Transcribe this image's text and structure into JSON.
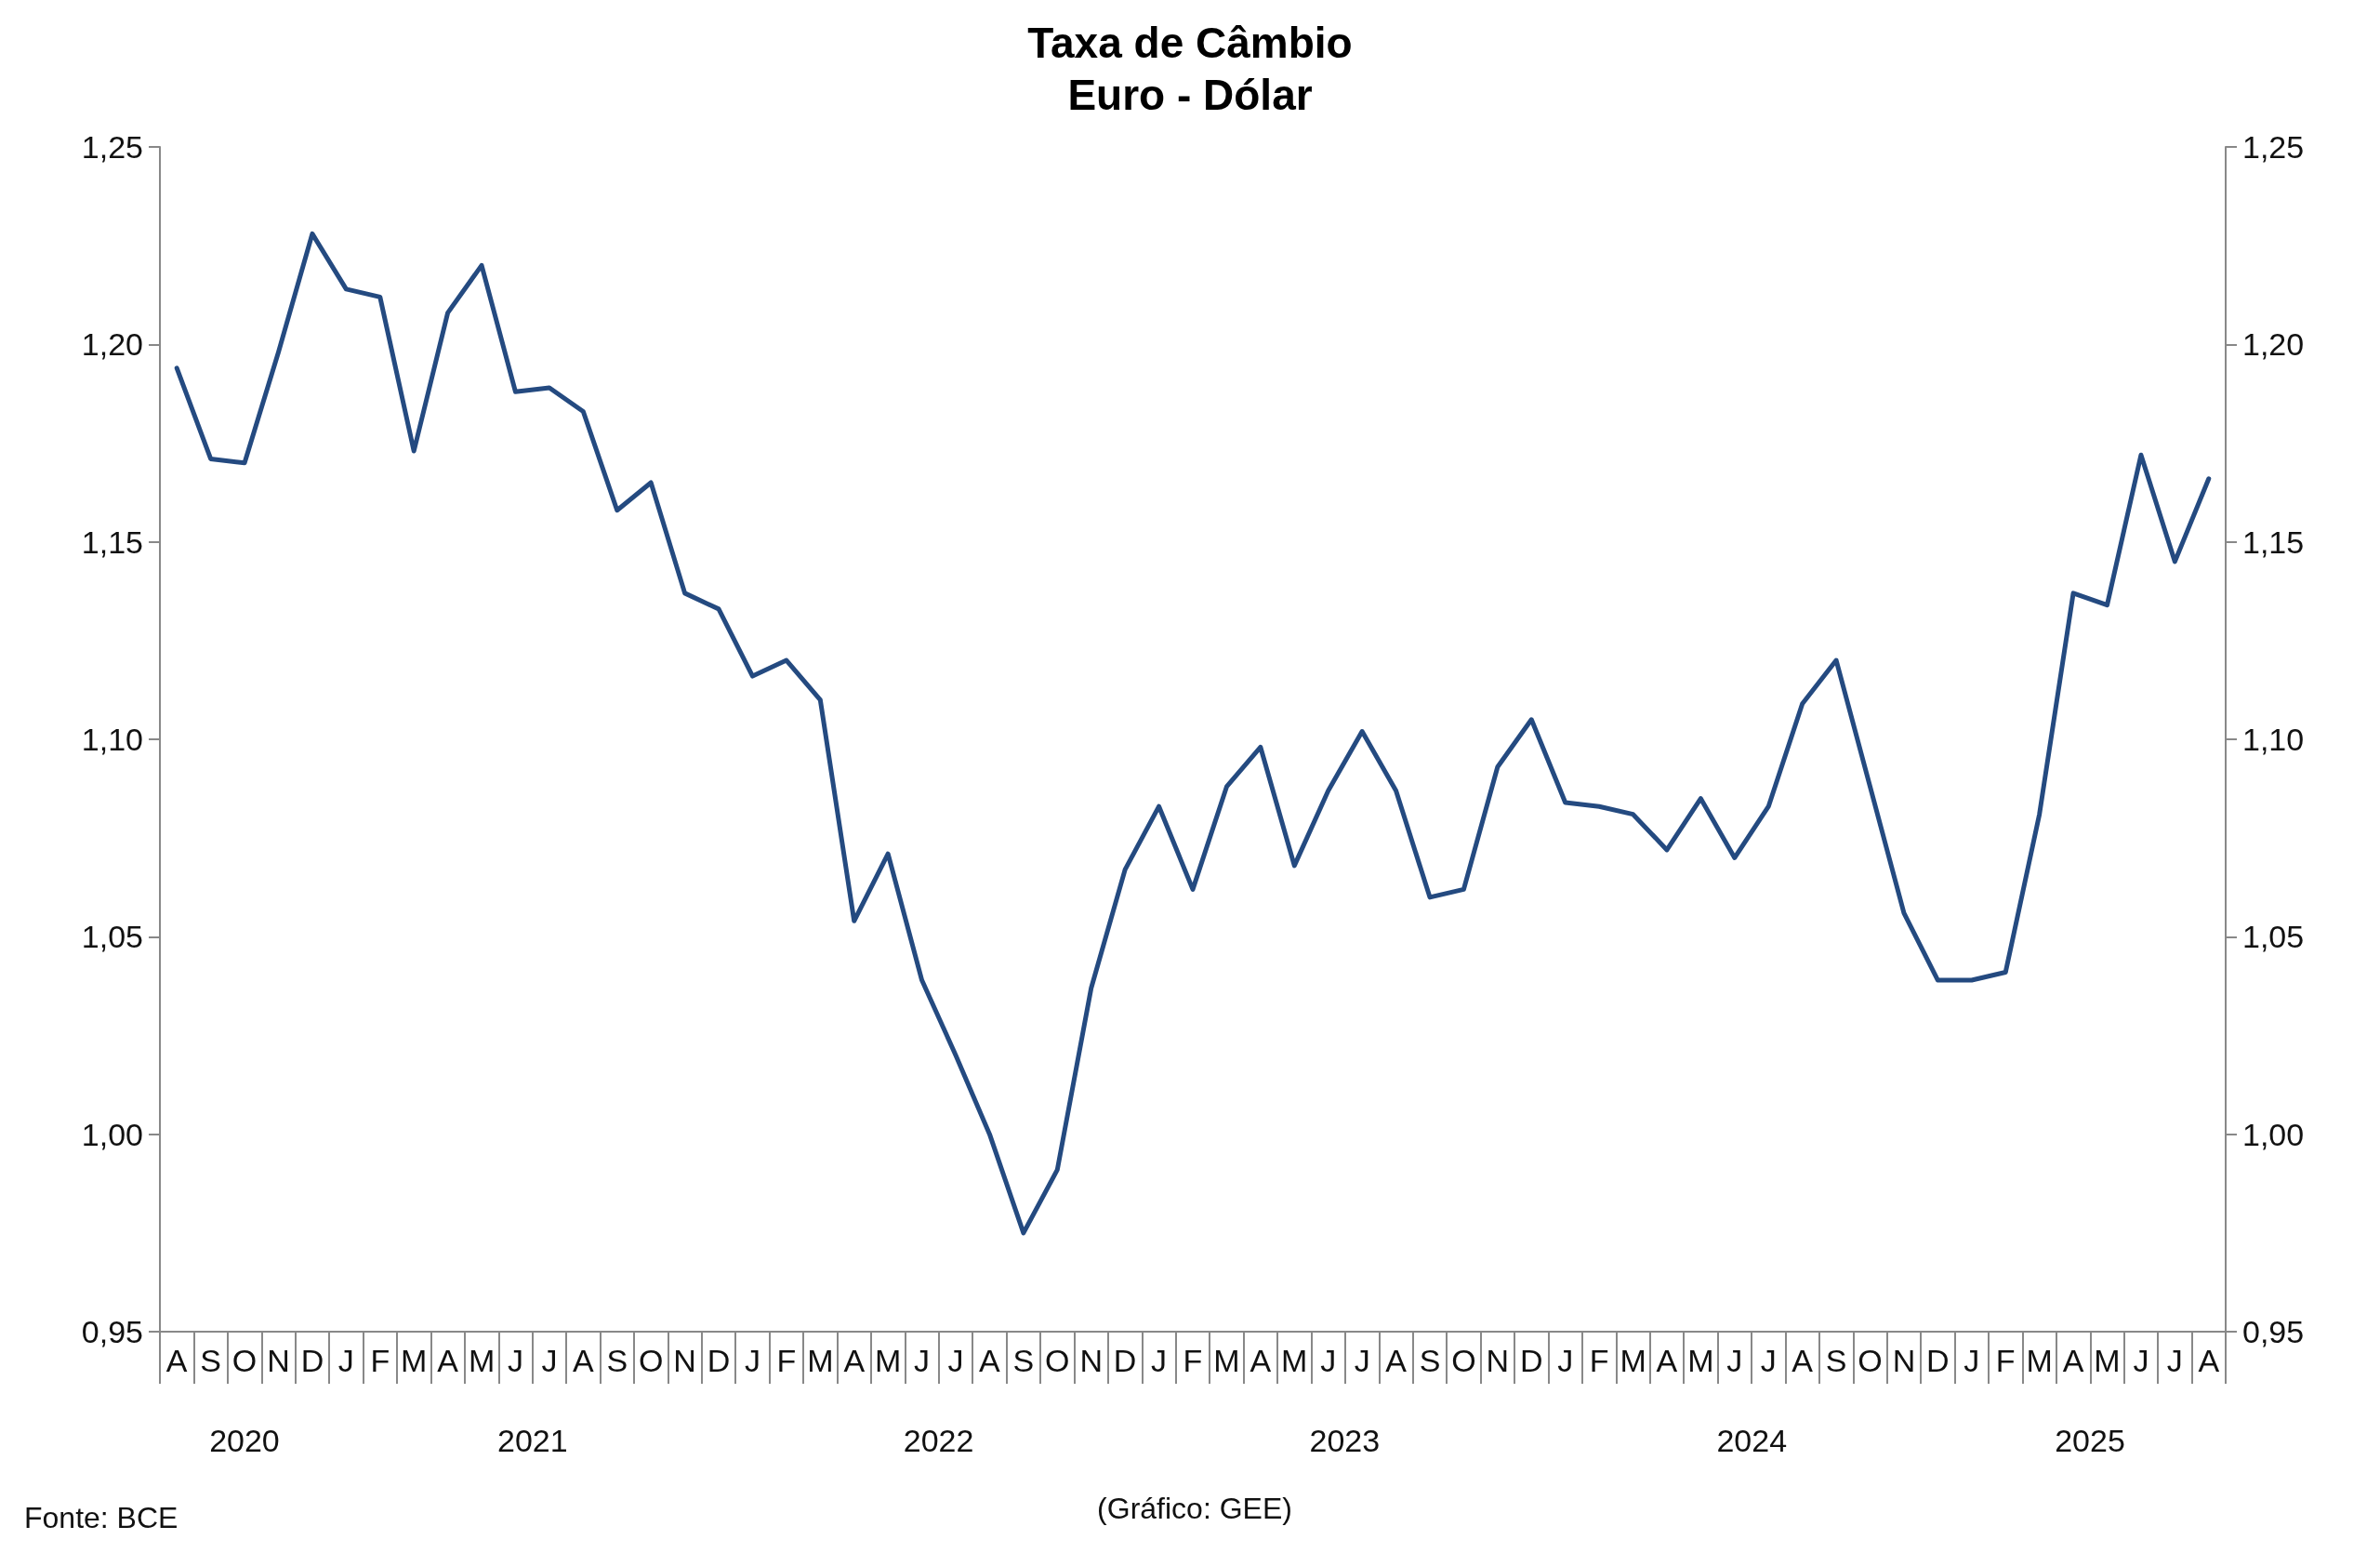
{
  "chart_data": {
    "type": "line",
    "title": "Taxa de Câmbio",
    "subtitle": "Euro - Dólar",
    "categories": [
      "A",
      "S",
      "O",
      "N",
      "D",
      "J",
      "F",
      "M",
      "A",
      "M",
      "J",
      "J",
      "A",
      "S",
      "O",
      "N",
      "D",
      "J",
      "F",
      "M",
      "A",
      "M",
      "J",
      "J",
      "A",
      "S",
      "O",
      "N",
      "D",
      "J",
      "F",
      "M",
      "A",
      "M",
      "J",
      "J",
      "A",
      "S",
      "O",
      "N",
      "D",
      "J",
      "F",
      "M",
      "A",
      "M",
      "J",
      "J",
      "A",
      "S",
      "O",
      "N",
      "D",
      "J",
      "F",
      "M",
      "A",
      "M",
      "J",
      "J",
      "A"
    ],
    "x2lim": [
      "2020-08-01",
      "2025-09-01"
    ],
    "x2ticks": [
      {
        "value": "2020-10-16",
        "label": "2020"
      },
      {
        "value": "2021-07-02",
        "label": "2021"
      },
      {
        "value": "2022-07-02",
        "label": "2022"
      },
      {
        "value": "2023-07-02",
        "label": "2023"
      },
      {
        "value": "2024-07-02",
        "label": "2024"
      },
      {
        "value": "2025-05-02",
        "label": "2025"
      }
    ],
    "series": [
      {
        "color": "#244a80",
        "values": [
          1.194,
          1.171,
          1.17,
          1.198,
          1.228,
          1.214,
          1.212,
          1.173,
          1.208,
          1.22,
          1.188,
          1.189,
          1.183,
          1.158,
          1.165,
          1.137,
          1.133,
          1.116,
          1.12,
          1.11,
          1.054,
          1.071,
          1.039,
          1.02,
          1.0,
          0.975,
          0.991,
          1.037,
          1.067,
          1.083,
          1.062,
          1.088,
          1.098,
          1.068,
          1.087,
          1.102,
          1.087,
          1.06,
          1.062,
          1.093,
          1.105,
          1.084,
          1.083,
          1.081,
          1.072,
          1.085,
          1.07,
          1.083,
          1.109,
          1.12,
          1.088,
          1.056,
          1.039,
          1.039,
          1.041,
          1.081,
          1.137,
          1.134,
          1.172,
          1.145,
          1.166
        ]
      }
    ],
    "ylim": [
      0.95,
      1.25
    ],
    "yticks": [
      {
        "value": 0.95,
        "label": "0,95"
      },
      {
        "value": 1.0,
        "label": "1,00"
      },
      {
        "value": 1.05,
        "label": "1,05"
      },
      {
        "value": 1.1,
        "label": "1,10"
      },
      {
        "value": 1.15,
        "label": "1,15"
      },
      {
        "value": 1.2,
        "label": "1,20"
      },
      {
        "value": 1.25,
        "label": "1,25"
      }
    ],
    "y2lim": [
      0.95,
      1.25
    ],
    "y2ticks": [
      {
        "value": 0.95,
        "label": "0,95"
      },
      {
        "value": 1.0,
        "label": "1,00"
      },
      {
        "value": 1.05,
        "label": "1,05"
      },
      {
        "value": 1.1,
        "label": "1,10"
      },
      {
        "value": 1.15,
        "label": "1,15"
      },
      {
        "value": 1.2,
        "label": "1,20"
      },
      {
        "value": 1.25,
        "label": "1,25"
      }
    ],
    "annotations": [
      "Fonte: BCE",
      "(Gráfico: GEE)"
    ],
    "marker": "none",
    "line_style": "solid",
    "grid": false
  }
}
